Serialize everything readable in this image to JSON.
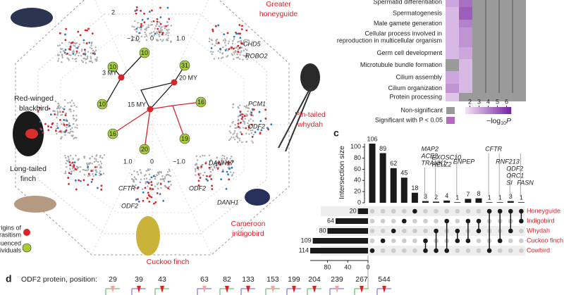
{
  "panel_a": {
    "species": [
      {
        "lines": [
          "Greater",
          "honeyguide"
        ],
        "color": "red"
      },
      {
        "lines": [
          "Red-winged",
          "blackbird"
        ],
        "color": "black"
      },
      {
        "lines": [
          "Pin-tailed",
          "whydah"
        ],
        "color": "red"
      },
      {
        "lines": [
          "Long-tailed",
          "finch"
        ],
        "color": "black"
      },
      {
        "lines": [
          "Cameroon",
          "indigobird"
        ],
        "color": "red"
      },
      {
        "lines": [
          "Cuckoo finch"
        ],
        "color": "red"
      }
    ],
    "genes": [
      "CHD5",
      "ROBO2",
      "PCM1",
      "ODF2",
      "CFTR",
      "ODF2",
      "ODF2",
      "DANH17",
      "DANH1"
    ],
    "axis_top": [
      "2",
      "−1.0",
      "0",
      "1.0"
    ],
    "axis_bottom": [
      "1.0",
      "0",
      "−1.0"
    ],
    "individuals": [
      "10",
      "10",
      "31",
      "10",
      "16",
      "16",
      "20",
      "19"
    ],
    "origins": [
      "3 MY",
      "20 MY",
      "15 MY"
    ],
    "legend": {
      "origins": [
        "Origins of",
        "brood parasitism"
      ],
      "individuals": [
        "Number of resequenced",
        "individuals"
      ]
    }
  },
  "panel_b": {
    "terms": [
      "Spermatid differentiation",
      "Spermatogenesis",
      "Male gamete generation",
      [
        "Cellular process involved in",
        "reproduction in multicellular organism"
      ],
      "Germ cell development",
      "Microtubule bundle formation",
      "Cilium assembly",
      "Cilium organization",
      "Protein processing"
    ],
    "cells": [
      [
        3,
        4.5,
        null,
        null,
        null,
        null
      ],
      [
        2.5,
        5,
        null,
        null,
        null,
        null
      ],
      [
        2.5,
        4,
        null,
        null,
        null,
        null
      ],
      [
        2.5,
        3.5,
        null,
        null,
        null,
        null
      ],
      [
        2.5,
        3,
        null,
        null,
        null,
        null
      ],
      [
        null,
        2.5,
        null,
        null,
        null,
        null
      ],
      [
        3,
        2.5,
        null,
        null,
        null,
        null
      ],
      [
        3.5,
        2.5,
        null,
        null,
        null,
        null
      ],
      [
        2.2,
        null,
        null,
        null,
        null,
        null
      ]
    ],
    "clim": [
      1.5,
      6.5
    ],
    "cticks": [
      2,
      3,
      4,
      5,
      6
    ],
    "legend": {
      "nonsig": "Non-significant",
      "sig": "Significant with P < 0.05",
      "cbar": "−log",
      "cbar_sub": "10",
      "cbar_end": "P"
    }
  },
  "panel_c": {
    "label": "c",
    "y_label": "Intersection size",
    "ylim": [
      0,
      106
    ],
    "yticks": [
      0,
      20,
      40,
      60,
      80,
      100
    ],
    "sizes": [
      106,
      89,
      62,
      45,
      18,
      3,
      2,
      4,
      1,
      7,
      8,
      1,
      1,
      3,
      1
    ],
    "sets": [
      [
        4
      ],
      [
        3
      ],
      [
        2
      ],
      [
        1
      ],
      [
        0
      ],
      [
        3,
        4
      ],
      [
        2,
        4
      ],
      [
        1,
        4
      ],
      [
        2,
        3
      ],
      [
        1,
        3
      ],
      [
        1,
        2
      ],
      [
        0,
        4
      ],
      [
        0,
        3
      ],
      [
        0,
        2
      ],
      [
        0,
        1
      ]
    ],
    "set_names": [
      "Honeyguide",
      "Indigobird",
      "Whydah",
      "Cuckoo finch",
      "Cowbird"
    ],
    "set_sizes": [
      20,
      64,
      80,
      109,
      114
    ],
    "set_lim": [
      0,
      114
    ],
    "set_ticks": [
      80,
      40,
      0
    ],
    "gene_notes": [
      {
        "at": 5,
        "lines": [
          "MAP2",
          "ACE2",
          "TRANK1"
        ]
      },
      {
        "at": 6,
        "lines": [
          "EXOSC10",
          "HELZ2"
        ]
      },
      {
        "at": 8,
        "lines": [
          "ENPEP"
        ]
      },
      {
        "at": 11,
        "lines": [
          "CFTR"
        ]
      },
      {
        "at": 12,
        "lines": [
          "RNF213"
        ]
      },
      {
        "at": 13,
        "lines": [
          "ODF2",
          "ORC1",
          "SI"
        ]
      },
      {
        "at": 14,
        "lines": [
          "FASN"
        ]
      }
    ]
  },
  "panel_d": {
    "label": "d",
    "title": "ODF2 protein, position:",
    "positions": [
      "29",
      "39",
      "43",
      "63",
      "82",
      "133",
      "153",
      "199",
      "204",
      "239",
      "267",
      "544"
    ]
  }
}
